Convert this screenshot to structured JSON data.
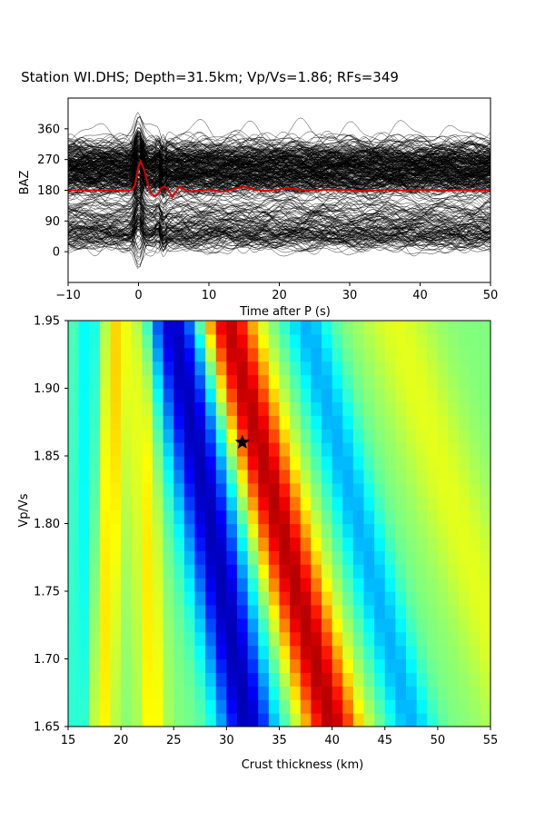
{
  "figure": {
    "title": "Station WI.DHS; Depth=31.5km; Vp/Vs=1.86; RFs=349"
  },
  "chart_data": [
    {
      "type": "line",
      "name": "receiver-function-section",
      "xlabel": "Time after P (s)",
      "ylabel": "BAZ",
      "xlim": [
        -10,
        50
      ],
      "ylim": [
        -90,
        450
      ],
      "xticks": [
        -10,
        0,
        10,
        20,
        30,
        40,
        50
      ],
      "yticks": [
        0,
        90,
        180,
        270,
        360
      ],
      "grid": false,
      "trace_count": 349,
      "trace_color": "#000000",
      "stack_color": "#dd0000",
      "stack_baseline": 180,
      "stack": {
        "x": [
          -10,
          -6,
          -3,
          -2,
          -1,
          -0.5,
          0,
          0.3,
          0.8,
          1.3,
          1.8,
          2.3,
          2.8,
          3.2,
          3.7,
          4.2,
          4.8,
          5.3,
          5.8,
          6.3,
          7,
          8,
          9,
          10,
          11,
          12,
          13,
          14,
          15,
          16,
          18,
          20,
          21,
          22,
          24,
          26,
          28,
          30,
          32,
          34,
          36,
          38,
          40,
          42,
          44,
          46,
          48,
          50
        ],
        "y": [
          0,
          0,
          -1,
          -2,
          0,
          14,
          70,
          85,
          60,
          20,
          -10,
          -18,
          -10,
          5,
          12,
          2,
          -20,
          -5,
          10,
          5,
          -3,
          -2,
          0,
          2,
          -2,
          -4,
          0,
          6,
          10,
          4,
          -2,
          2,
          7,
          4,
          -1,
          1,
          2,
          0,
          -2,
          0,
          1,
          -1,
          2,
          0,
          -1,
          1,
          0,
          0
        ]
      }
    },
    {
      "type": "heatmap",
      "name": "h-kappa-stack",
      "xlabel": "Crust thickness (km)",
      "ylabel": "Vp/Vs",
      "xlim": [
        15,
        55
      ],
      "ylim": [
        1.65,
        1.95
      ],
      "xticks": [
        15,
        20,
        25,
        30,
        35,
        40,
        45,
        50,
        55
      ],
      "yticks": [
        1.65,
        1.7,
        1.75,
        1.8,
        1.85,
        1.9,
        1.95
      ],
      "colormap": "jet",
      "grid_size": [
        40,
        30
      ],
      "marker": {
        "symbol": "star",
        "x": 31.5,
        "y": 1.86
      },
      "bands": [
        {
          "name": "blue-left",
          "H_at_top": 17.0,
          "H_at_bottom": 16.5,
          "width": 1.6,
          "amp": -0.3
        },
        {
          "name": "orange-1",
          "H_at_top": 19.5,
          "H_at_bottom": 18.0,
          "width": 1.4,
          "amp": 0.4
        },
        {
          "name": "orange-2",
          "H_at_top": 22.0,
          "H_at_bottom": 23.0,
          "width": 1.3,
          "amp": 0.32
        },
        {
          "name": "deep-blue",
          "H_at_top": 25.0,
          "H_at_bottom": 32.0,
          "width": 2.8,
          "amp": -1.0
        },
        {
          "name": "red-max",
          "H_at_top": 30.0,
          "H_at_bottom": 40.0,
          "width": 2.7,
          "amp": 1.0
        },
        {
          "name": "mid-blue",
          "H_at_top": 37.5,
          "H_at_bottom": 47.5,
          "width": 2.3,
          "amp": -0.45
        },
        {
          "name": "right-yellow",
          "H_at_top": 46.0,
          "H_at_bottom": 58.0,
          "width": 3.5,
          "amp": 0.22
        }
      ]
    }
  ]
}
